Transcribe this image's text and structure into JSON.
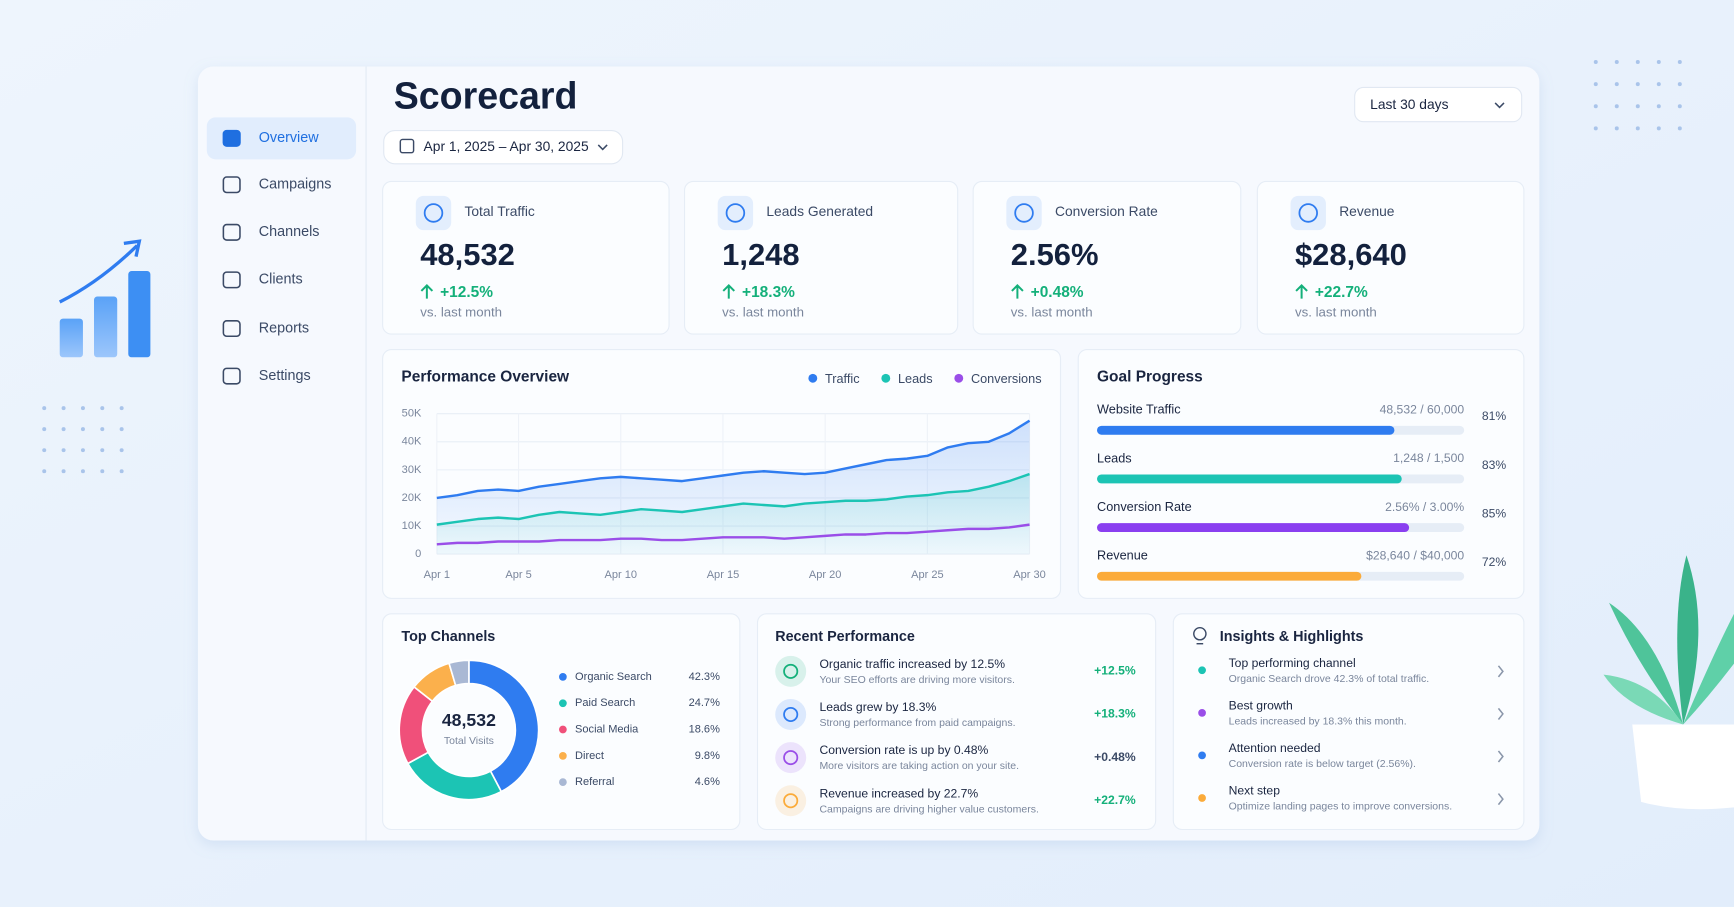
{
  "nav": [
    "Overview",
    "Campaigns",
    "Channels",
    "Clients",
    "Reports",
    "Settings"
  ],
  "header": {
    "title": "Scorecard",
    "date_range": "Apr 1, 2025 – Apr 30, 2025",
    "period": "Last 30 days"
  },
  "kpis": [
    {
      "label": "Total Traffic",
      "value": "48,532",
      "change": "+12.5%",
      "note": "vs. last month"
    },
    {
      "label": "Leads Generated",
      "value": "1,248",
      "change": "+18.3%",
      "note": "vs. last month"
    },
    {
      "label": "Conversion Rate",
      "value": "2.56%",
      "change": "+0.48%",
      "note": "vs. last month"
    },
    {
      "label": "Revenue",
      "value": "$28,640",
      "change": "+22.7%",
      "note": "vs. last month"
    }
  ],
  "chart_data": [
    {
      "type": "line",
      "title": "Performance Overview",
      "categories": [
        "Apr 1",
        null,
        null,
        null,
        "Apr 5",
        null,
        null,
        null,
        null,
        "Apr 10",
        null,
        null,
        null,
        null,
        "Apr 15",
        null,
        null,
        null,
        null,
        "Apr 20",
        null,
        null,
        null,
        null,
        "Apr 25",
        null,
        null,
        null,
        null,
        "Apr 30"
      ],
      "series": [
        {
          "name": "Traffic",
          "color": "#2f7cf0",
          "values": [
            20000,
            21000,
            22500,
            23000,
            22500,
            24000,
            25000,
            26000,
            27000,
            27500,
            27000,
            26500,
            26000,
            27000,
            28000,
            29000,
            29500,
            29000,
            28500,
            29000,
            30500,
            32000,
            33500,
            34000,
            35000,
            38000,
            39500,
            40000,
            43000,
            47500
          ]
        },
        {
          "name": "Leads",
          "color": "#1cc4b4",
          "values": [
            10500,
            11500,
            12500,
            13000,
            12500,
            14000,
            15000,
            14500,
            14000,
            15000,
            16000,
            15500,
            15000,
            16000,
            17000,
            18000,
            17500,
            17000,
            18000,
            18500,
            19000,
            19000,
            19500,
            20500,
            21000,
            22000,
            22500,
            24000,
            26000,
            28500
          ]
        },
        {
          "name": "Conversions",
          "color": "#9a4ee8",
          "values": [
            3500,
            4000,
            4000,
            4500,
            4500,
            4500,
            5000,
            5000,
            5000,
            5500,
            5500,
            5000,
            5000,
            5500,
            6000,
            6000,
            6000,
            5500,
            6000,
            6500,
            7000,
            7000,
            7500,
            7500,
            8000,
            8500,
            9000,
            9000,
            9500,
            10500
          ]
        }
      ],
      "ylim": [
        0,
        50000
      ],
      "yticks": [
        0,
        {
          "value": 10000,
          "label": "10K"
        },
        {
          "value": 20000,
          "label": "20K"
        },
        {
          "value": 30000,
          "label": "30K"
        },
        {
          "value": 40000,
          "label": "40K"
        },
        {
          "value": 50000,
          "label": "50K"
        }
      ],
      "grid": true,
      "legend": "top-right"
    },
    {
      "type": "donut",
      "title": "Top Channels",
      "categories": [
        "Organic Search",
        "Paid Search",
        "Social Media",
        "Direct",
        "Referral"
      ],
      "values": [
        42.3,
        24.7,
        18.6,
        9.8,
        4.6
      ],
      "value_labels": [
        "42.3%",
        "24.7%",
        "18.6%",
        "9.8%",
        "4.6%"
      ],
      "colors": [
        "#2f7cf0",
        "#1cc4b4",
        "#f0507a",
        "#fbb04c",
        "#a9b8d4"
      ],
      "center_value": "48,532",
      "center_label": "Total Visits"
    },
    {
      "type": "progress",
      "title": "Goal Progress",
      "categories": [
        "Website Traffic",
        "Leads",
        "Conversion Rate",
        "Revenue"
      ],
      "details": [
        "48,532 / 60,000",
        "1,248 / 1,500",
        "2.56% / 3.00%",
        "$28,640 / $40,000"
      ],
      "values": [
        81,
        83,
        85,
        72
      ],
      "value_labels": [
        "81%",
        "83%",
        "85%",
        "72%"
      ],
      "colors": [
        "#2f7cf0",
        "#1cc4b4",
        "#8a3ff0",
        "#fbab3a"
      ],
      "xlim": [
        0,
        100
      ]
    }
  ],
  "recent": {
    "title": "Recent Performance",
    "items": [
      {
        "title": "Organic traffic increased by 12.5%",
        "desc": "Your SEO efforts are driving more visitors.",
        "change": "+12.5%",
        "color": "#14b07a"
      },
      {
        "title": "Leads grew by 18.3%",
        "desc": "Strong performance from paid campaigns.",
        "change": "+18.3%",
        "color": "#2f7cf0"
      },
      {
        "title": "Conversion rate is up by 0.48%",
        "desc": "More visitors are taking action on your site.",
        "change": "+0.48%",
        "color": "#9a4ee8"
      },
      {
        "title": "Revenue increased by 22.7%",
        "desc": "Campaigns are driving higher value customers.",
        "change": "+22.7%",
        "color": "#fbab3a"
      }
    ]
  },
  "insights": {
    "title": "Insights & Highlights",
    "items": [
      {
        "title": "Top performing channel",
        "desc": "Organic Search drove 42.3% of total traffic.",
        "color": "#1cc4b4"
      },
      {
        "title": "Best growth",
        "desc": "Leads increased by 18.3% this month.",
        "color": "#9a4ee8"
      },
      {
        "title": "Attention needed",
        "desc": "Conversion rate is below target (2.56%).",
        "color": "#2f7cf0"
      },
      {
        "title": "Next step",
        "desc": "Optimize landing pages to improve conversions.",
        "color": "#fbab3a"
      }
    ]
  }
}
